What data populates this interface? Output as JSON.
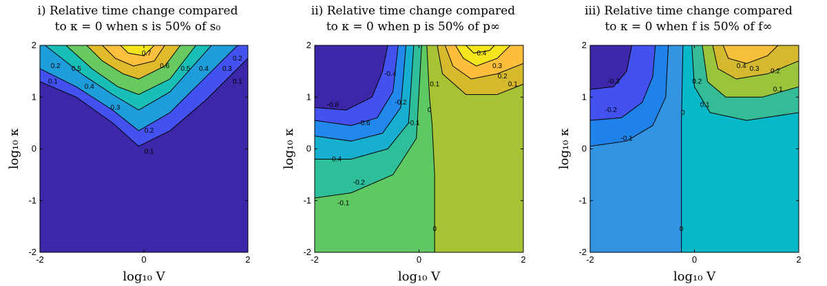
{
  "chart_data": [
    {
      "type": "contour",
      "panel": "i",
      "title_line1": "i) Relative time change compared",
      "title_line2": "to κ = 0 when s is 50% of s₀",
      "xlabel": "log₁₀ V",
      "ylabel": "log₁₀ κ",
      "xlim": [
        -2,
        2
      ],
      "ylim": [
        -2,
        2
      ],
      "xticks": [
        "-2",
        "0",
        "2"
      ],
      "yticks": [
        "-2",
        "-1",
        "0",
        "1",
        "2"
      ],
      "levels": [
        0.1,
        0.2,
        0.3,
        0.4,
        0.5,
        0.6,
        0.7
      ],
      "contours": [
        {
          "level": 0.1,
          "label": "0.1",
          "points": [
            [
              -2,
              1.3
            ],
            [
              -1.3,
              1.0
            ],
            [
              -0.6,
              0.5
            ],
            [
              -0.1,
              0.05
            ],
            [
              0.5,
              0.35
            ],
            [
              1.2,
              0.95
            ],
            [
              2,
              1.75
            ]
          ]
        },
        {
          "level": 0.2,
          "label": "0.2",
          "points": [
            [
              -2,
              1.55
            ],
            [
              -1.3,
              1.2
            ],
            [
              -0.6,
              0.75
            ],
            [
              -0.1,
              0.35
            ],
            [
              0.5,
              0.7
            ],
            [
              1.2,
              1.4
            ],
            [
              1.8,
              2
            ]
          ]
        },
        {
          "level": 0.3,
          "label": "0.3",
          "points": [
            [
              -1.9,
              2
            ],
            [
              -1.2,
              1.45
            ],
            [
              -0.6,
              1.05
            ],
            [
              -0.1,
              0.75
            ],
            [
              0.5,
              1.1
            ],
            [
              1.3,
              2
            ]
          ]
        },
        {
          "level": 0.4,
          "label": "0.4",
          "points": [
            [
              -1.5,
              2
            ],
            [
              -1.0,
              1.55
            ],
            [
              -0.5,
              1.2
            ],
            [
              -0.1,
              1.05
            ],
            [
              0.5,
              1.35
            ],
            [
              1.0,
              2
            ]
          ]
        },
        {
          "level": 0.5,
          "label": "0.5",
          "points": [
            [
              -1.1,
              2
            ],
            [
              -0.8,
              1.7
            ],
            [
              -0.4,
              1.45
            ],
            [
              -0.1,
              1.35
            ],
            [
              0.4,
              1.6
            ],
            [
              0.7,
              2
            ]
          ]
        },
        {
          "level": 0.6,
          "label": "0.6",
          "points": [
            [
              -0.8,
              2
            ],
            [
              -0.55,
              1.75
            ],
            [
              -0.2,
              1.6
            ],
            [
              0.2,
              1.7
            ],
            [
              0.4,
              2
            ]
          ]
        },
        {
          "level": 0.7,
          "label": "0.7",
          "points": [
            [
              -0.45,
              2
            ],
            [
              -0.3,
              1.85
            ],
            [
              0.0,
              1.8
            ],
            [
              0.2,
              2
            ]
          ]
        }
      ],
      "labels": [
        {
          "text": "0.7",
          "x": 0.05,
          "y": 1.85
        },
        {
          "text": "0.6",
          "x": 0.4,
          "y": 1.6
        },
        {
          "text": "0.5",
          "x": 0.8,
          "y": 1.55
        },
        {
          "text": "0.4",
          "x": 1.15,
          "y": 1.55
        },
        {
          "text": "0.3",
          "x": 1.6,
          "y": 1.55
        },
        {
          "text": "0.2",
          "x": 1.8,
          "y": 1.75
        },
        {
          "text": "0.1",
          "x": 1.8,
          "y": 1.3
        },
        {
          "text": "0.5",
          "x": -1.3,
          "y": 1.55
        },
        {
          "text": "0.4",
          "x": -1.05,
          "y": 1.2
        },
        {
          "text": "0.3",
          "x": -0.55,
          "y": 0.8
        },
        {
          "text": "0.2",
          "x": 0.1,
          "y": 0.35
        },
        {
          "text": "0.1",
          "x": 0.1,
          "y": -0.05
        },
        {
          "text": "0.2",
          "x": -1.7,
          "y": 1.6
        },
        {
          "text": "0.1",
          "x": -1.75,
          "y": 1.3
        }
      ]
    },
    {
      "type": "contour",
      "panel": "ii",
      "title_line1": "ii) Relative time change compared",
      "title_line2": "to κ = 0 when p is 50% of p∞",
      "xlabel": "log₁₀ V",
      "ylabel": "log₁₀ κ",
      "xlim": [
        -2,
        2
      ],
      "ylim": [
        -2,
        2
      ],
      "xticks": [
        "-2",
        "0",
        "2"
      ],
      "yticks": [
        "-2",
        "-1",
        "0",
        "1",
        "2"
      ],
      "levels": [
        -0.8,
        -0.6,
        -0.4,
        -0.2,
        -0.1,
        0,
        0.1,
        0.2,
        0.3,
        0.4
      ],
      "contours": [
        {
          "level": -0.8,
          "label": "-0.8",
          "points": [
            [
              -2,
              0.8
            ],
            [
              -1.4,
              0.75
            ],
            [
              -0.9,
              1.0
            ],
            [
              -0.7,
              1.5
            ],
            [
              -0.6,
              2
            ]
          ]
        },
        {
          "level": -0.6,
          "label": "-0.6",
          "points": [
            [
              -2,
              0.55
            ],
            [
              -1.3,
              0.45
            ],
            [
              -0.8,
              0.6
            ],
            [
              -0.5,
              1.1
            ],
            [
              -0.4,
              2
            ]
          ]
        },
        {
          "level": -0.4,
          "label": "-0.4",
          "points": [
            [
              -2,
              0.25
            ],
            [
              -1.3,
              0.15
            ],
            [
              -0.7,
              0.3
            ],
            [
              -0.35,
              0.8
            ],
            [
              -0.25,
              2
            ]
          ]
        },
        {
          "level": -0.2,
          "label": "-0.2",
          "points": [
            [
              -2,
              -0.2
            ],
            [
              -1.3,
              -0.2
            ],
            [
              -0.6,
              0.0
            ],
            [
              -0.2,
              0.5
            ],
            [
              -0.1,
              2
            ]
          ]
        },
        {
          "level": -0.1,
          "label": "-0.1",
          "points": [
            [
              -2,
              -0.95
            ],
            [
              -1.3,
              -0.85
            ],
            [
              -0.5,
              -0.5
            ],
            [
              -0.05,
              0.2
            ],
            [
              0.05,
              2
            ]
          ]
        },
        {
          "level": 0,
          "label": "0",
          "points": [
            [
              0.3,
              -2
            ],
            [
              0.3,
              -0.5
            ],
            [
              0.25,
              0.5
            ],
            [
              0.2,
              1.0
            ],
            [
              0.15,
              2
            ]
          ]
        },
        {
          "level": 0.1,
          "label": "0.1",
          "points": [
            [
              0.35,
              2
            ],
            [
              0.45,
              1.45
            ],
            [
              0.9,
              1.05
            ],
            [
              1.5,
              1.05
            ],
            [
              2,
              1.25
            ]
          ]
        },
        {
          "level": 0.2,
          "label": "0.2",
          "points": [
            [
              0.5,
              2
            ],
            [
              0.65,
              1.6
            ],
            [
              1.0,
              1.35
            ],
            [
              1.5,
              1.45
            ],
            [
              2,
              1.65
            ]
          ]
        },
        {
          "level": 0.3,
          "label": "0.3",
          "points": [
            [
              0.7,
              2
            ],
            [
              0.85,
              1.75
            ],
            [
              1.1,
              1.6
            ],
            [
              1.5,
              1.75
            ],
            [
              1.75,
              2
            ]
          ]
        },
        {
          "level": 0.4,
          "label": "0.4",
          "points": [
            [
              0.9,
              2
            ],
            [
              1.05,
              1.85
            ],
            [
              1.35,
              1.9
            ],
            [
              1.45,
              2
            ]
          ]
        }
      ],
      "labels": [
        {
          "text": "-0.8",
          "x": -1.65,
          "y": 0.85
        },
        {
          "text": "-0.6",
          "x": -1.05,
          "y": 0.5
        },
        {
          "text": "-0.4",
          "x": -1.6,
          "y": -0.2
        },
        {
          "text": "-0.2",
          "x": -1.15,
          "y": -0.65
        },
        {
          "text": "-0.1",
          "x": -1.45,
          "y": -1.05
        },
        {
          "text": "-0.4",
          "x": -0.55,
          "y": 1.45
        },
        {
          "text": "-0.2",
          "x": -0.35,
          "y": 0.9
        },
        {
          "text": "-0.1",
          "x": -0.1,
          "y": 0.5
        },
        {
          "text": "0",
          "x": 0.2,
          "y": 0.75
        },
        {
          "text": "0.1",
          "x": 0.3,
          "y": 1.25
        },
        {
          "text": "0",
          "x": 0.3,
          "y": -1.55
        },
        {
          "text": "0.4",
          "x": 1.2,
          "y": 1.85
        },
        {
          "text": "0.3",
          "x": 1.5,
          "y": 1.6
        },
        {
          "text": "0.2",
          "x": 1.6,
          "y": 1.4
        },
        {
          "text": "0.1",
          "x": 1.8,
          "y": 1.25
        }
      ]
    },
    {
      "type": "contour",
      "panel": "iii",
      "title_line1": "iii) Relative time change compared",
      "title_line2": "to κ = 0 when f is 50% of f∞",
      "xlabel": "log₁₀ V",
      "ylabel": "log₁₀ κ",
      "xlim": [
        -2,
        2
      ],
      "ylim": [
        -2,
        2
      ],
      "xticks": [
        "-2",
        "0",
        "2"
      ],
      "yticks": [
        "-2",
        "-1",
        "0",
        "1",
        "2"
      ],
      "levels": [
        -0.3,
        -0.2,
        -0.1,
        0,
        0.1,
        0.2,
        0.3,
        0.4
      ],
      "contours": [
        {
          "level": -0.3,
          "label": "-0.3",
          "points": [
            [
              -2,
              1.15
            ],
            [
              -1.55,
              1.2
            ],
            [
              -1.3,
              1.5
            ],
            [
              -1.2,
              2
            ]
          ]
        },
        {
          "level": -0.2,
          "label": "-0.2",
          "points": [
            [
              -2,
              0.55
            ],
            [
              -1.4,
              0.6
            ],
            [
              -1.0,
              0.9
            ],
            [
              -0.8,
              1.4
            ],
            [
              -0.75,
              2
            ]
          ]
        },
        {
          "level": -0.1,
          "label": "-0.1",
          "points": [
            [
              -2,
              0.05
            ],
            [
              -1.3,
              0.15
            ],
            [
              -0.8,
              0.45
            ],
            [
              -0.55,
              1.0
            ],
            [
              -0.5,
              2
            ]
          ]
        },
        {
          "level": 0,
          "label": "0",
          "points": [
            [
              -0.25,
              -2
            ],
            [
              -0.25,
              -0.5
            ],
            [
              -0.25,
              0.5
            ],
            [
              -0.22,
              2
            ]
          ]
        },
        {
          "level": 0.1,
          "label": "0.1",
          "points": [
            [
              -0.05,
              2
            ],
            [
              0.0,
              1.2
            ],
            [
              0.3,
              0.7
            ],
            [
              1.0,
              0.55
            ],
            [
              2,
              0.7
            ]
          ]
        },
        {
          "level": 0.2,
          "label": "0.2",
          "points": [
            [
              0.15,
              2
            ],
            [
              0.25,
              1.3
            ],
            [
              0.6,
              1.0
            ],
            [
              1.3,
              1.0
            ],
            [
              2,
              1.2
            ]
          ]
        },
        {
          "level": 0.3,
          "label": "0.3",
          "points": [
            [
              0.35,
              2
            ],
            [
              0.45,
              1.55
            ],
            [
              0.8,
              1.35
            ],
            [
              1.4,
              1.45
            ],
            [
              2,
              1.7
            ]
          ]
        },
        {
          "level": 0.4,
          "label": "0.4",
          "points": [
            [
              0.55,
              2
            ],
            [
              0.65,
              1.75
            ],
            [
              1.0,
              1.65
            ],
            [
              1.4,
              1.8
            ],
            [
              1.6,
              2
            ]
          ]
        }
      ],
      "labels": [
        {
          "text": "-0.3",
          "x": -1.55,
          "y": 1.3
        },
        {
          "text": "-0.2",
          "x": -1.6,
          "y": 0.75
        },
        {
          "text": "-0.1",
          "x": -1.3,
          "y": 0.2
        },
        {
          "text": "0",
          "x": -0.22,
          "y": 0.7
        },
        {
          "text": "0.2",
          "x": 0.05,
          "y": 1.3
        },
        {
          "text": "0.1",
          "x": 0.2,
          "y": 0.85
        },
        {
          "text": "0",
          "x": -0.25,
          "y": -1.55
        },
        {
          "text": "0.4",
          "x": 0.9,
          "y": 1.6
        },
        {
          "text": "0.3",
          "x": 1.15,
          "y": 1.55
        },
        {
          "text": "0.2",
          "x": 1.55,
          "y": 1.5
        },
        {
          "text": "0.1",
          "x": 1.6,
          "y": 1.15
        }
      ]
    }
  ],
  "colors": {
    "p1": {
      "base": "#3e26a8",
      "fills": [
        "#4352ef",
        "#1f9ddb",
        "#19bfb7",
        "#68c961",
        "#dfbb2b",
        "#fcbf3e",
        "#f4e51d"
      ]
    },
    "p2": {
      "base": "#3e26a8",
      "below": [
        "#4352ef",
        "#2388ec",
        "#16afd0",
        "#2ebf9a"
      ],
      "mid": "#5ec962",
      "pos": [
        "#a6c334",
        "#d6b92d",
        "#fdbe3c",
        "#f4e51d"
      ]
    },
    "p3": {
      "base": "#3e26a8",
      "below": [
        "#4352ef",
        "#1f82e8"
      ],
      "neg": "#3394e2",
      "zero": "#06b8c9",
      "pos": [
        "#34bc97",
        "#9bc43d",
        "#d3b830",
        "#f5c13b",
        "#f9e02b"
      ]
    }
  }
}
